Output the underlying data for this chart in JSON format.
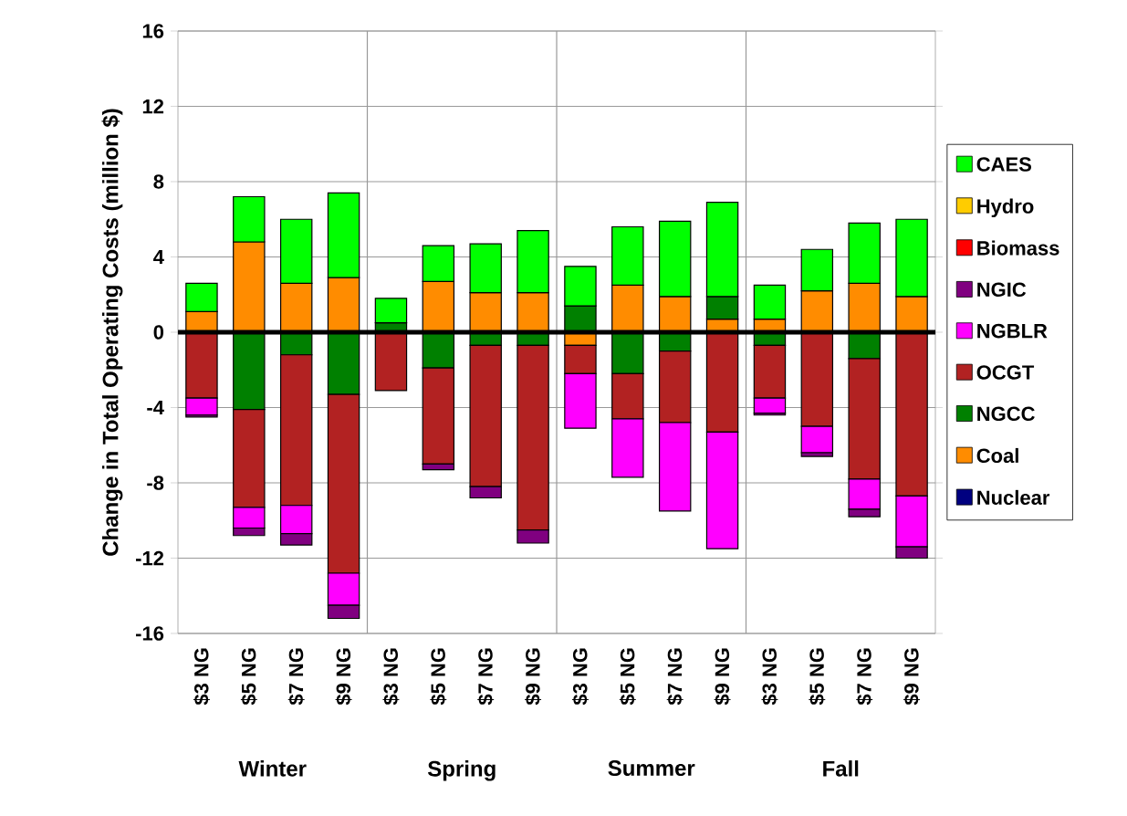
{
  "chart_data": {
    "type": "bar",
    "stacked": true,
    "ylabel": "Change in Total Operating Costs (million $)",
    "categories": [
      "$3 NG",
      "$5 NG",
      "$7 NG",
      "$9 NG",
      "$3 NG",
      "$5 NG",
      "$7 NG",
      "$9 NG",
      "$3 NG",
      "$5 NG",
      "$7 NG",
      "$9 NG",
      "$3 NG",
      "$5 NG",
      "$7 NG",
      "$9 NG"
    ],
    "series": [
      {
        "name": "Nuclear",
        "color": "#000080",
        "values": [
          null,
          0,
          0,
          0,
          0,
          0,
          null,
          0,
          0,
          0,
          0,
          0,
          0,
          0,
          0,
          0
        ]
      },
      {
        "name": "Coal",
        "color": "#ff8c00",
        "values": [
          1.1,
          4.8,
          2.6,
          2.9,
          0,
          2.7,
          2.1,
          2.1,
          -0.7,
          2.5,
          1.9,
          0.7,
          0.7,
          2.2,
          2.6,
          1.9
        ]
      },
      {
        "name": "NGCC",
        "color": "#008000",
        "values": [
          0,
          -4.1,
          -1.2,
          -3.3,
          0.5,
          -1.9,
          -0.7,
          -0.7,
          1.4,
          -2.2,
          -1.0,
          1.2,
          -0.7,
          null,
          -1.4,
          0
        ]
      },
      {
        "name": "OCGT",
        "color": "#b22222",
        "values": [
          -3.5,
          -5.2,
          -8.0,
          -9.5,
          -3.1,
          -5.1,
          -7.5,
          -9.8,
          -1.5,
          -2.4,
          -3.8,
          -5.3,
          -2.8,
          -5.0,
          -6.4,
          -8.7
        ]
      },
      {
        "name": "NGBLR",
        "color": "#ff00ff",
        "values": [
          -0.9,
          -1.1,
          -1.5,
          -1.7,
          0,
          0,
          0,
          0,
          -2.9,
          -3.1,
          -4.7,
          -6.2,
          -0.8,
          -1.4,
          -1.6,
          -2.7
        ]
      },
      {
        "name": "NGIC",
        "color": "#800080",
        "values": [
          -0.1,
          -0.4,
          -0.6,
          -0.7,
          0,
          -0.3,
          -0.6,
          -0.7,
          0,
          0,
          0,
          0,
          -0.1,
          -0.2,
          -0.4,
          -0.6
        ]
      },
      {
        "name": "Biomass",
        "color": "#ff0000",
        "values": [
          0,
          0,
          0,
          0,
          0,
          0,
          0,
          0,
          0,
          0,
          0,
          0,
          0,
          0,
          0,
          0
        ]
      },
      {
        "name": "Hydro",
        "color": "#ffcc00",
        "values": [
          0,
          0,
          0,
          0,
          0,
          0,
          0,
          0,
          0,
          0,
          0,
          0,
          0,
          0,
          0,
          0
        ]
      },
      {
        "name": "CAES",
        "color": "#00ff00",
        "values": [
          1.5,
          2.4,
          3.4,
          4.5,
          1.3,
          1.9,
          2.6,
          3.3,
          2.1,
          3.1,
          4.0,
          5.0,
          1.8,
          2.2,
          3.2,
          4.1
        ]
      }
    ],
    "ylim": [
      -16,
      16
    ],
    "yticks": [
      -16,
      -12,
      -8,
      -4,
      0,
      4,
      8,
      12,
      16
    ],
    "grid": true,
    "legend": "right",
    "annotations": [
      "Winter",
      "Spring",
      "Summer",
      "Fall"
    ]
  }
}
